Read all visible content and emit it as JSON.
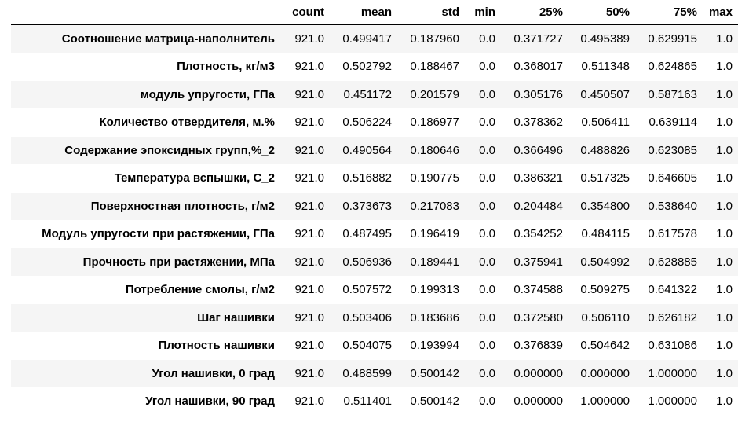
{
  "table": {
    "columns": [
      "count",
      "mean",
      "std",
      "min",
      "25%",
      "50%",
      "75%",
      "max"
    ],
    "rows": [
      {
        "label": "Соотношение матрица-наполнитель",
        "values": [
          "921.0",
          "0.499417",
          "0.187960",
          "0.0",
          "0.371727",
          "0.495389",
          "0.629915",
          "1.0"
        ]
      },
      {
        "label": "Плотность, кг/м3",
        "values": [
          "921.0",
          "0.502792",
          "0.188467",
          "0.0",
          "0.368017",
          "0.511348",
          "0.624865",
          "1.0"
        ]
      },
      {
        "label": "модуль упругости, ГПа",
        "values": [
          "921.0",
          "0.451172",
          "0.201579",
          "0.0",
          "0.305176",
          "0.450507",
          "0.587163",
          "1.0"
        ]
      },
      {
        "label": "Количество отвердителя, м.%",
        "values": [
          "921.0",
          "0.506224",
          "0.186977",
          "0.0",
          "0.378362",
          "0.506411",
          "0.639114",
          "1.0"
        ]
      },
      {
        "label": "Содержание эпоксидных групп,%_2",
        "values": [
          "921.0",
          "0.490564",
          "0.180646",
          "0.0",
          "0.366496",
          "0.488826",
          "0.623085",
          "1.0"
        ]
      },
      {
        "label": "Температура вспышки, С_2",
        "values": [
          "921.0",
          "0.516882",
          "0.190775",
          "0.0",
          "0.386321",
          "0.517325",
          "0.646605",
          "1.0"
        ]
      },
      {
        "label": "Поверхностная плотность, г/м2",
        "values": [
          "921.0",
          "0.373673",
          "0.217083",
          "0.0",
          "0.204484",
          "0.354800",
          "0.538640",
          "1.0"
        ]
      },
      {
        "label": "Модуль упругости при растяжении, ГПа",
        "values": [
          "921.0",
          "0.487495",
          "0.196419",
          "0.0",
          "0.354252",
          "0.484115",
          "0.617578",
          "1.0"
        ]
      },
      {
        "label": "Прочность при растяжении, МПа",
        "values": [
          "921.0",
          "0.506936",
          "0.189441",
          "0.0",
          "0.375941",
          "0.504992",
          "0.628885",
          "1.0"
        ]
      },
      {
        "label": "Потребление смолы, г/м2",
        "values": [
          "921.0",
          "0.507572",
          "0.199313",
          "0.0",
          "0.374588",
          "0.509275",
          "0.641322",
          "1.0"
        ]
      },
      {
        "label": "Шаг нашивки",
        "values": [
          "921.0",
          "0.503406",
          "0.183686",
          "0.0",
          "0.372580",
          "0.506110",
          "0.626182",
          "1.0"
        ]
      },
      {
        "label": "Плотность нашивки",
        "values": [
          "921.0",
          "0.504075",
          "0.193994",
          "0.0",
          "0.376839",
          "0.504642",
          "0.631086",
          "1.0"
        ]
      },
      {
        "label": "Угол нашивки, 0 град",
        "values": [
          "921.0",
          "0.488599",
          "0.500142",
          "0.0",
          "0.000000",
          "0.000000",
          "1.000000",
          "1.0"
        ]
      },
      {
        "label": "Угол нашивки, 90 град",
        "values": [
          "921.0",
          "0.511401",
          "0.500142",
          "0.0",
          "0.000000",
          "1.000000",
          "1.000000",
          "1.0"
        ]
      }
    ]
  }
}
